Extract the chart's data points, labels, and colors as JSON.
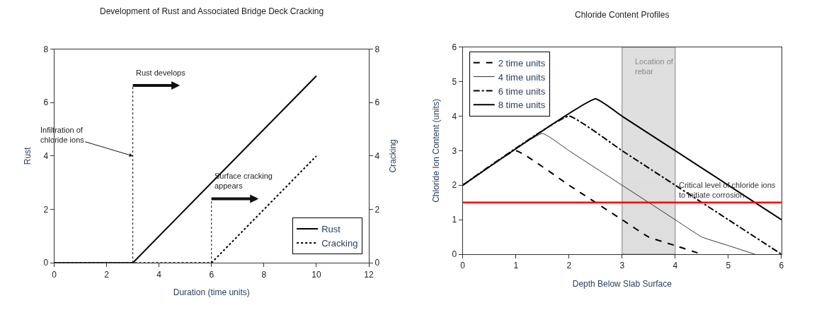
{
  "chart_data": [
    {
      "type": "line",
      "title": "Development of Rust and Associated Bridge Deck Cracking",
      "xlabel": "Duration (time units)",
      "ylabel": "Rust",
      "y2label": "Cracking",
      "xlim": [
        0,
        12
      ],
      "xticks": [
        0,
        2,
        4,
        6,
        8,
        10,
        12
      ],
      "ylim": [
        0,
        8
      ],
      "yticks": [
        0,
        2,
        4,
        6,
        8
      ],
      "y2lim": [
        0,
        8
      ],
      "y2ticks": [
        0,
        2,
        4,
        6,
        8
      ],
      "series": [
        {
          "name": "Rust",
          "color": "#000000",
          "line_style": "solid",
          "x": [
            0,
            3,
            10
          ],
          "values": [
            0,
            0,
            7
          ]
        },
        {
          "name": "Cracking",
          "color": "#000000",
          "line_style": "dotted",
          "axis": "y2",
          "x": [
            0,
            6,
            10
          ],
          "values": [
            0,
            0,
            4
          ]
        }
      ],
      "ref_lines": [
        {
          "axis": "x",
          "value": 3,
          "line_style": "dotted",
          "color": "#000000",
          "label": "Rust develops"
        },
        {
          "axis": "x",
          "value": 6,
          "line_style": "dotted",
          "color": "#000000",
          "label": "Surface cracking\nappears"
        }
      ],
      "annotations": [
        {
          "text": "Infiltration of\nchloride ions",
          "x": 3,
          "y": 4
        }
      ],
      "legend": "bottom right",
      "grid": false,
      "marker": "none"
    },
    {
      "type": "line",
      "title": "Chloride Content Profiles",
      "xlabel": "Depth Below Slab Surface",
      "ylabel": "Chloride Ion Content (units)",
      "xlim": [
        0,
        6
      ],
      "xticks": [
        0,
        1,
        2,
        3,
        4,
        5,
        6
      ],
      "ylim": [
        0,
        6
      ],
      "yticks": [
        0,
        1,
        2,
        3,
        4,
        5,
        6
      ],
      "series": [
        {
          "name": "2 time units",
          "color": "#000000",
          "line_style": "dashed",
          "x": [
            0,
            1,
            2,
            3,
            3.5,
            4,
            4.5
          ],
          "values": [
            2,
            3,
            2,
            1,
            0.5,
            0.25,
            0
          ]
        },
        {
          "name": "4 time units",
          "color": "#000000",
          "line_style": "solid",
          "x": [
            0,
            1.5,
            2,
            3,
            4,
            4.5,
            5,
            5.5
          ],
          "values": [
            2,
            3.5,
            3,
            2,
            1,
            0.5,
            0.25,
            0
          ]
        },
        {
          "name": "6 time units",
          "color": "#000000",
          "line_style": "dashdot",
          "x": [
            0,
            2,
            3,
            4,
            5,
            6
          ],
          "values": [
            2,
            4,
            3,
            2,
            1,
            0
          ]
        },
        {
          "name": "8 time units",
          "color": "#000000",
          "line_style": "solid",
          "x": [
            0,
            2.5,
            3,
            4,
            5,
            6
          ],
          "values": [
            2,
            4.5,
            4,
            3,
            2,
            1
          ]
        }
      ],
      "ref_lines": [
        {
          "axis": "y",
          "value": 1.5,
          "color": "#ff0000",
          "label": "Critical level of chloride ions\nto initiate corrosion"
        }
      ],
      "bands": [
        {
          "axis": "x",
          "from": 3,
          "to": 4,
          "label": "Location of\nrebar",
          "color": "#bfbfbf"
        }
      ],
      "legend": "top left",
      "grid": false,
      "marker": "none"
    }
  ]
}
